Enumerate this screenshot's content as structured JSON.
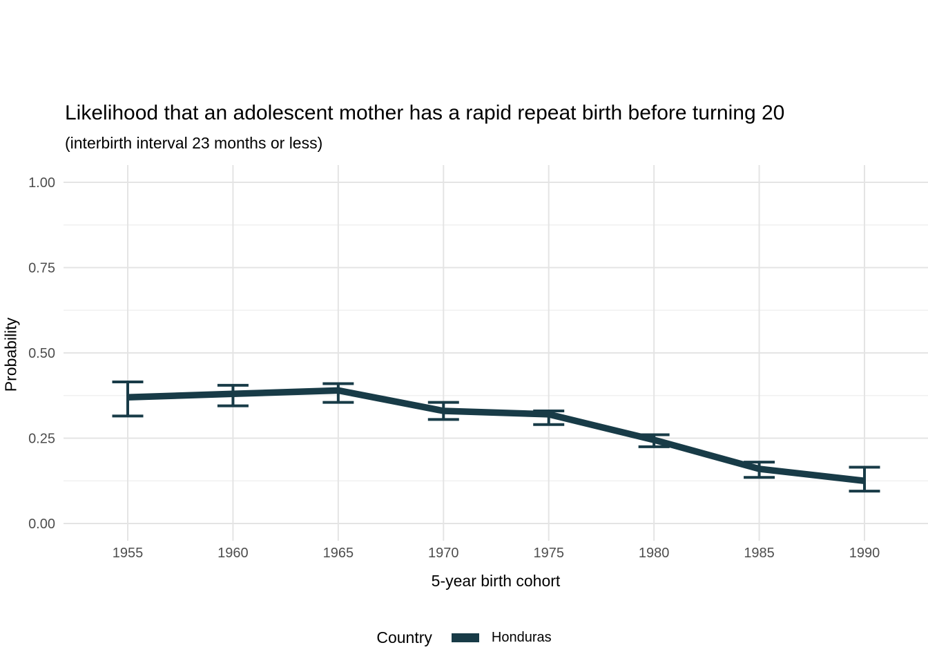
{
  "chart_data": {
    "type": "line",
    "title": "Likelihood that an adolescent mother has a rapid repeat birth before turning 20",
    "subtitle": "(interbirth interval 23 months or less)",
    "xlabel": "5-year birth cohort",
    "ylabel": "Probability",
    "categories": [
      "1955",
      "1960",
      "1965",
      "1970",
      "1975",
      "1980",
      "1985",
      "1990"
    ],
    "series": [
      {
        "name": "Honduras",
        "color": "#183b47",
        "values": [
          0.37,
          0.38,
          0.39,
          0.33,
          0.32,
          0.245,
          0.16,
          0.125
        ],
        "ci_low": [
          0.315,
          0.345,
          0.355,
          0.305,
          0.29,
          0.225,
          0.135,
          0.095
        ],
        "ci_high": [
          0.415,
          0.405,
          0.41,
          0.355,
          0.33,
          0.26,
          0.18,
          0.165
        ]
      }
    ],
    "error_bars": true,
    "ylim": [
      0,
      1
    ],
    "y_ticks": [
      {
        "v": 0.0,
        "label": "0.00"
      },
      {
        "v": 0.25,
        "label": "0.25"
      },
      {
        "v": 0.5,
        "label": "0.50"
      },
      {
        "v": 0.75,
        "label": "0.75"
      },
      {
        "v": 1.0,
        "label": "1.00"
      }
    ],
    "y_minor_ticks": [
      0.125,
      0.375,
      0.625,
      0.875
    ],
    "grid": "horizontal major+minor, vertical major only",
    "legend_position": "bottom",
    "legend_title": "Country"
  }
}
